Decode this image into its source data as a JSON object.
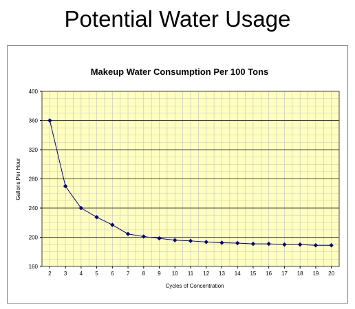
{
  "slide": {
    "title": "Potential Water Usage"
  },
  "colors": {
    "plot_background": "#FFFFC0",
    "minor_grid": "#C0C0C0",
    "major_grid": "#404040",
    "series_line": "#000080",
    "frame_border": "#808080"
  },
  "chart_data": {
    "type": "line",
    "title": "Makeup Water Consumption Per 100 Tons",
    "xlabel": "Cycles of Concentration",
    "ylabel": "Gallons Per Hour",
    "x": [
      2,
      3,
      4,
      5,
      6,
      7,
      8,
      9,
      10,
      11,
      12,
      13,
      14,
      15,
      16,
      17,
      18,
      19,
      20
    ],
    "series": [
      {
        "name": "",
        "values": [
          360,
          270,
          240,
          227.5,
          217,
          204.5,
          201,
          198.5,
          196,
          195,
          193.5,
          192.5,
          192,
          191,
          191,
          190,
          190,
          189,
          189
        ],
        "marker": "diamond"
      }
    ],
    "ylim": [
      160,
      400
    ],
    "yticks": [
      160,
      200,
      240,
      280,
      320,
      360,
      400
    ],
    "y_minor_step": 10,
    "xticks": [
      2,
      3,
      4,
      5,
      6,
      7,
      8,
      9,
      10,
      11,
      12,
      13,
      14,
      15,
      16,
      17,
      18,
      19,
      20
    ],
    "x_minor_step": 0.5,
    "grid": true,
    "legend": false
  }
}
